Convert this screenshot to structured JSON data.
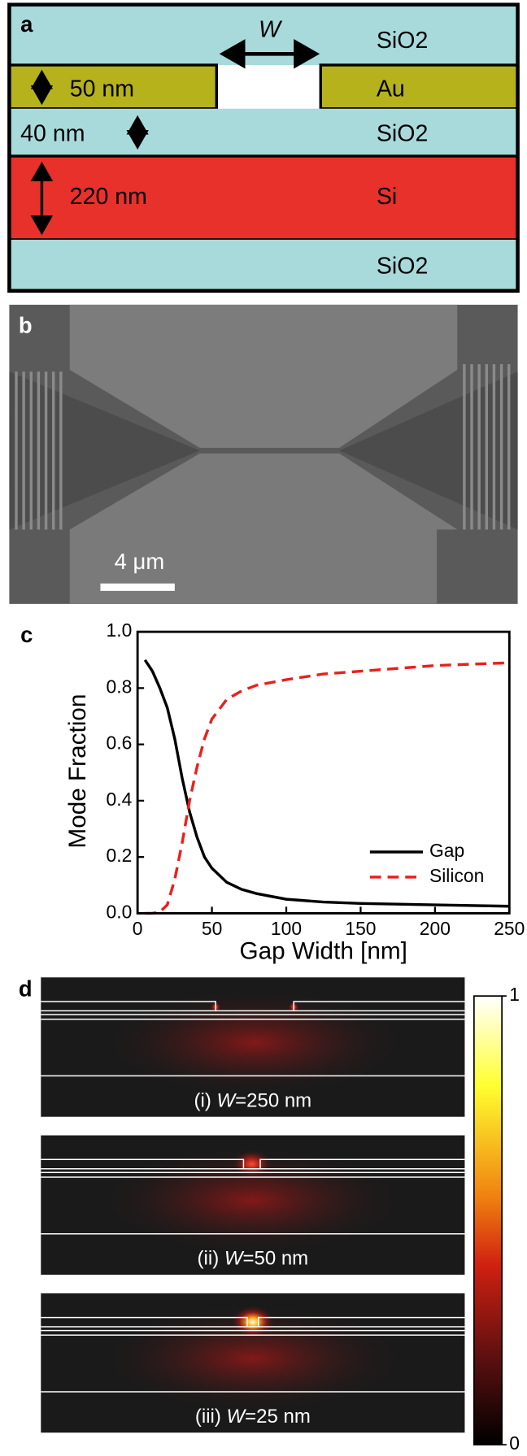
{
  "panel_a": {
    "label": "a",
    "gap_symbol": "W",
    "top_oxide": "SiO2",
    "au_thickness": "50 nm",
    "au": "Au",
    "spacer_thickness": "40 nm",
    "spacer_oxide": "SiO2",
    "si_thickness": "220 nm",
    "si": "Si",
    "bottom_oxide": "SiO2"
  },
  "panel_b": {
    "label": "b",
    "scale_bar": "4 μm"
  },
  "chart_data": {
    "type": "line",
    "label": "c",
    "x_label": "Gap Width [nm]",
    "y_label": "Mode Fraction",
    "x": [
      5,
      10,
      15,
      20,
      25,
      30,
      35,
      40,
      45,
      50,
      60,
      70,
      80,
      100,
      125,
      150,
      200,
      250
    ],
    "series": [
      {
        "name": "Gap",
        "color": "#000000",
        "dash": "solid",
        "values": [
          0.9,
          0.86,
          0.8,
          0.73,
          0.62,
          0.48,
          0.36,
          0.27,
          0.2,
          0.16,
          0.11,
          0.085,
          0.07,
          0.05,
          0.04,
          0.035,
          0.03,
          0.025
        ]
      },
      {
        "name": "Silicon",
        "color": "#e8211c",
        "dash": "dashed",
        "values": [
          0,
          0,
          0.005,
          0.03,
          0.12,
          0.25,
          0.4,
          0.52,
          0.62,
          0.69,
          0.76,
          0.79,
          0.81,
          0.83,
          0.85,
          0.86,
          0.88,
          0.89
        ]
      }
    ],
    "xlim": [
      0,
      250
    ],
    "ylim": [
      0,
      1
    ],
    "xticks": [
      0,
      50,
      100,
      150,
      200,
      250
    ],
    "yticks": [
      {
        "value": 0,
        "label": "0.0"
      },
      0.2,
      0.4,
      0.6,
      0.8,
      {
        "value": 1,
        "label": "1.0"
      }
    ],
    "legend": "lower right"
  },
  "panel_d": {
    "label": "d",
    "maps": [
      {
        "prefix": "(i) ",
        "symbol": "W",
        "suffix": "=250 nm"
      },
      {
        "prefix": "(ii) ",
        "symbol": "W",
        "suffix": "=50 nm"
      },
      {
        "prefix": "(iii) ",
        "symbol": "W",
        "suffix": "=25 nm"
      }
    ],
    "colorbar": {
      "lim": [
        0,
        1
      ],
      "ticks": [
        0,
        1
      ]
    }
  }
}
